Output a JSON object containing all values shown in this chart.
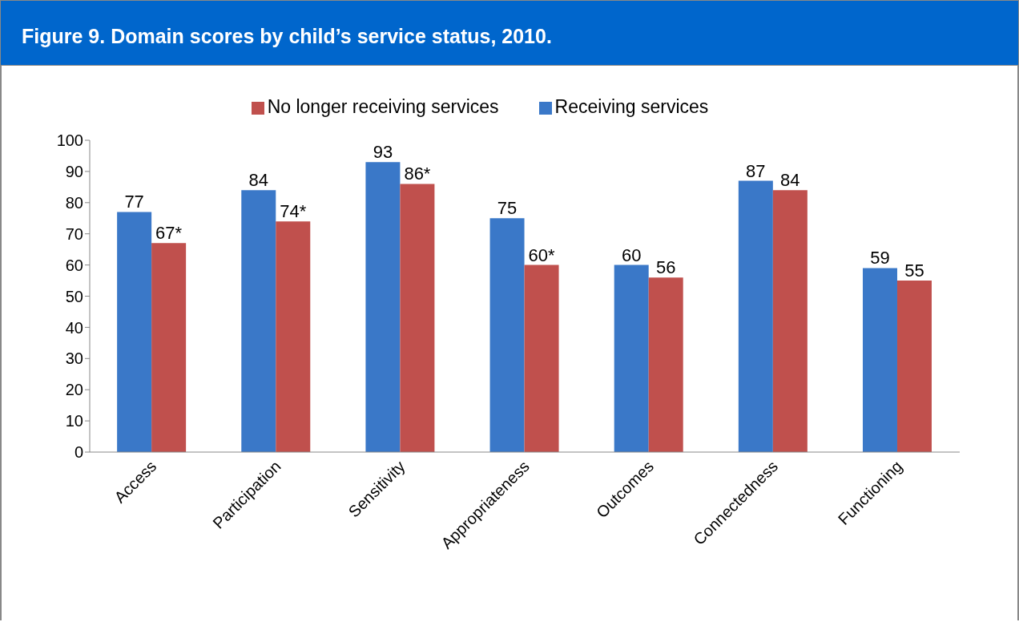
{
  "chart_data": {
    "type": "bar",
    "title": "Figure 9. Domain scores by child’s service status, 2010.",
    "categories": [
      "Access",
      "Participation",
      "Sensitivity",
      "Appropriateness",
      "Outcomes",
      "Connectedness",
      "Functioning"
    ],
    "series": [
      {
        "name": "Receiving services",
        "color": "#3a78c8",
        "values": [
          77,
          84,
          93,
          75,
          60,
          87,
          59
        ],
        "value_labels": [
          "77",
          "84",
          "93",
          "75",
          "60",
          "87",
          "59"
        ]
      },
      {
        "name": "No longer receiving services",
        "color": "#c0504d",
        "values": [
          67,
          74,
          86,
          60,
          56,
          84,
          55
        ],
        "value_labels": [
          "67*",
          "74*",
          "86*",
          "60*",
          "56",
          "84",
          "55"
        ]
      }
    ],
    "ylim": [
      0,
      100
    ],
    "yticks": [
      0,
      10,
      20,
      30,
      40,
      50,
      60,
      70,
      80,
      90,
      100
    ],
    "grid": false,
    "legend": "top"
  }
}
